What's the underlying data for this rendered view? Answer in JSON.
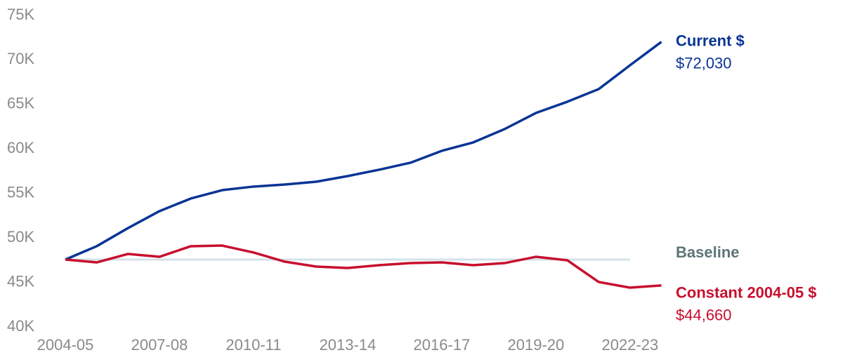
{
  "chart_data": {
    "type": "line",
    "categories": [
      "2004-05",
      null,
      null,
      "2007-08",
      null,
      null,
      "2010-11",
      null,
      null,
      "2013-14",
      null,
      null,
      "2016-17",
      null,
      null,
      "2019-20",
      null,
      null,
      "2022-23",
      null
    ],
    "series": [
      {
        "name": "Current $",
        "color": "#0a3595",
        "values": [
          47570,
          49070,
          51110,
          53010,
          54430,
          55370,
          55770,
          56000,
          56320,
          56950,
          57660,
          58450,
          59790,
          60730,
          62230,
          64040,
          65300,
          66720,
          69400,
          72030
        ],
        "value_labels": [
          null,
          null,
          null,
          null,
          null,
          null,
          null,
          null,
          null,
          null,
          null,
          null,
          null,
          null,
          null,
          null,
          null,
          null,
          null,
          "$72,030"
        ]
      },
      {
        "name": "Constant 2004-05 $",
        "color": "#c8102e",
        "values": [
          47570,
          47250,
          48200,
          47880,
          49070,
          49140,
          48360,
          47330,
          46780,
          46620,
          46940,
          47170,
          47250,
          46940,
          47170,
          47880,
          47490,
          45050,
          44410,
          44660
        ],
        "value_labels": [
          null,
          null,
          null,
          null,
          null,
          null,
          null,
          null,
          null,
          null,
          null,
          null,
          null,
          null,
          null,
          null,
          null,
          null,
          null,
          "$44,660"
        ]
      }
    ],
    "baseline": {
      "label": "Baseline",
      "value": 47570,
      "color": "#d3e2e8",
      "label_color": "#5f7478"
    },
    "ylim": [
      40000,
      75000
    ],
    "yticks": [
      {
        "value": 40000,
        "label": "40K"
      },
      {
        "value": 45000,
        "label": "45K"
      },
      {
        "value": 50000,
        "label": "50K"
      },
      {
        "value": 55000,
        "label": "55K"
      },
      {
        "value": 60000,
        "label": "60K"
      },
      {
        "value": 65000,
        "label": "65K"
      },
      {
        "value": 70000,
        "label": "70K"
      },
      {
        "value": 75000,
        "label": "75K"
      }
    ],
    "grid": false
  }
}
